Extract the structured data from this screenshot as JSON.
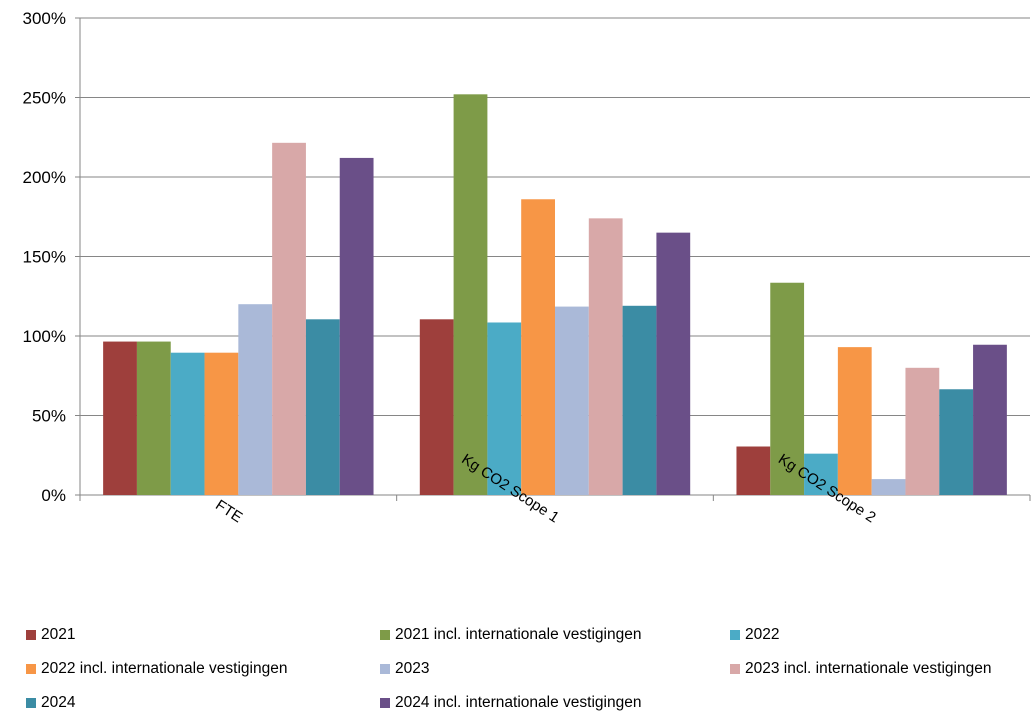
{
  "chart_data": {
    "type": "bar",
    "categories": [
      "FTE",
      "Kg CO2 Scope 1",
      "Kg CO2 Scope 2"
    ],
    "series": [
      {
        "name": "2021",
        "color": "#9e3f3c",
        "values": [
          96.5,
          110.5,
          30.5
        ]
      },
      {
        "name": "2021 incl. internationale vestigingen",
        "color": "#7e9b48",
        "values": [
          96.5,
          252,
          133.5
        ]
      },
      {
        "name": "2022",
        "color": "#4babc6",
        "values": [
          89.5,
          108.5,
          26
        ]
      },
      {
        "name": "2022 incl. internationale vestigingen",
        "color": "#f79646",
        "values": [
          89.5,
          186,
          93
        ]
      },
      {
        "name": "2023",
        "color": "#aab9d8",
        "values": [
          120,
          118.5,
          10
        ]
      },
      {
        "name": "2023 incl. internationale vestigingen",
        "color": "#d8a8a8",
        "values": [
          221.5,
          174,
          80
        ]
      },
      {
        "name": "2024",
        "color": "#3b8ca4",
        "values": [
          110.5,
          119,
          66.5
        ]
      },
      {
        "name": "2024 incl. internationale vestigingen",
        "color": "#6a4f88",
        "values": [
          212,
          165,
          94.5
        ]
      }
    ],
    "yticks": [
      "0%",
      "50%",
      "100%",
      "150%",
      "200%",
      "250%",
      "300%"
    ],
    "ylim": [
      0,
      300
    ],
    "grid": true,
    "legend_position": "bottom",
    "title": "",
    "xlabel": "",
    "ylabel": ""
  }
}
